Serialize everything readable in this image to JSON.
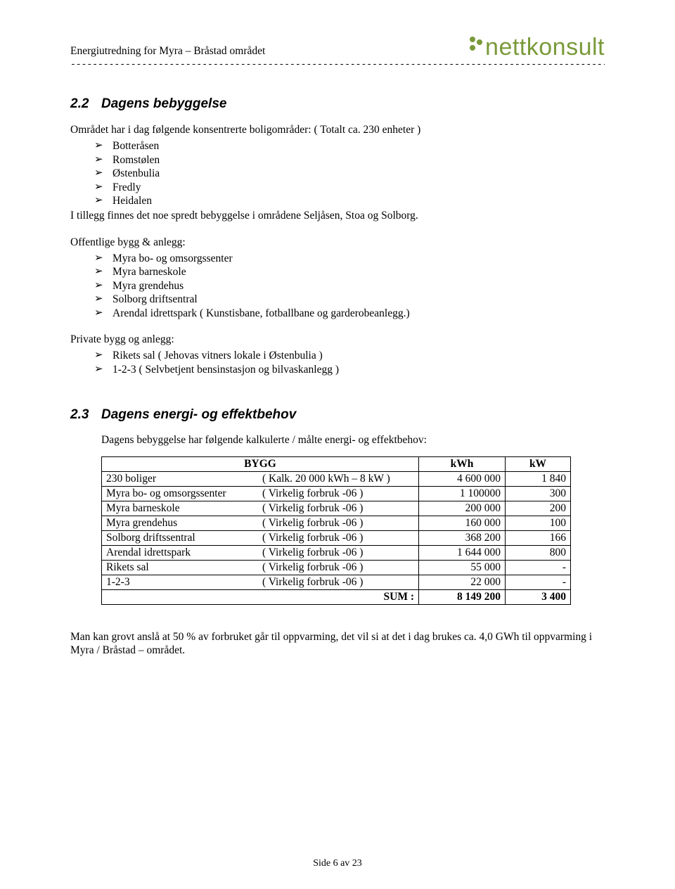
{
  "header": {
    "title": "Energiutredning for Myra – Bråstad området",
    "logo_text": "nettkonsult",
    "logo_color": "#7a9a3a",
    "dashes": "--------------------------------------------------------------------------------------------------------------"
  },
  "section22": {
    "number": "2.2",
    "title": "Dagens bebyggelse",
    "intro": "Området har i dag følgende konsentrerte boligområder: ( Totalt ca. 230 enheter )",
    "list1": [
      "Botteråsen",
      "Romstølen",
      "Østenbulia",
      "Fredly",
      "Heidalen"
    ],
    "after_list1": "I tillegg finnes det noe spredt bebyggelse i områdene Seljåsen, Stoa og Solborg.",
    "sub2_title": "Offentlige bygg & anlegg:",
    "list2": [
      "Myra bo- og omsorgssenter",
      "Myra barneskole",
      "Myra grendehus",
      "Solborg driftsentral",
      "Arendal idrettspark ( Kunstisbane, fotballbane og garderobeanlegg.)"
    ],
    "sub3_title": "Private bygg og anlegg:",
    "list3": [
      "Rikets sal ( Jehovas vitners lokale i  Østenbulia )",
      "1-2-3 ( Selvbetjent bensinstasjon og bilvaskanlegg )"
    ]
  },
  "section23": {
    "number": "2.3",
    "title": "Dagens energi- og effektbehov",
    "intro": "Dagens bebyggelse har følgende kalkulerte / målte energi- og effektbehov:",
    "table": {
      "headers": [
        "BYGG",
        "kWh",
        "kW"
      ],
      "rows": [
        {
          "name_l": "230 boliger",
          "name_r": "( Kalk.  20 000 kWh – 8 kW )",
          "kwh": "4 600 000",
          "kw": "1 840"
        },
        {
          "name_l": "Myra bo- og omsorgssenter",
          "name_r": "( Virkelig forbruk -06 )",
          "kwh": "1 100000",
          "kw": "300"
        },
        {
          "name_l": "Myra barneskole",
          "name_r": "( Virkelig forbruk -06 )",
          "kwh": "200 000",
          "kw": "200"
        },
        {
          "name_l": "Myra grendehus",
          "name_r": "( Virkelig forbruk -06 )",
          "kwh": "160 000",
          "kw": "100"
        },
        {
          "name_l": "Solborg driftssentral",
          "name_r": "( Virkelig forbruk -06 )",
          "kwh": "368 200",
          "kw": "166"
        },
        {
          "name_l": "Arendal idrettspark",
          "name_r": "( Virkelig forbruk -06 )",
          "kwh": "1 644 000",
          "kw": "800"
        },
        {
          "name_l": "Rikets sal",
          "name_r": "( Virkelig forbruk -06 )",
          "kwh": "55 000",
          "kw": "-"
        },
        {
          "name_l": "1-2-3",
          "name_r": "( Virkelig forbruk -06 )",
          "kwh": "22 000",
          "kw": "-"
        }
      ],
      "sum_label": "SUM :",
      "sum_kwh": "8 149 200",
      "sum_kw": "3 400"
    },
    "closing": "Man kan grovt anslå at 50 % av forbruket går til oppvarming, det vil si at det i dag brukes ca. 4,0 GWh til oppvarming i Myra / Bråstad – området."
  },
  "footer": "Side 6 av 23"
}
